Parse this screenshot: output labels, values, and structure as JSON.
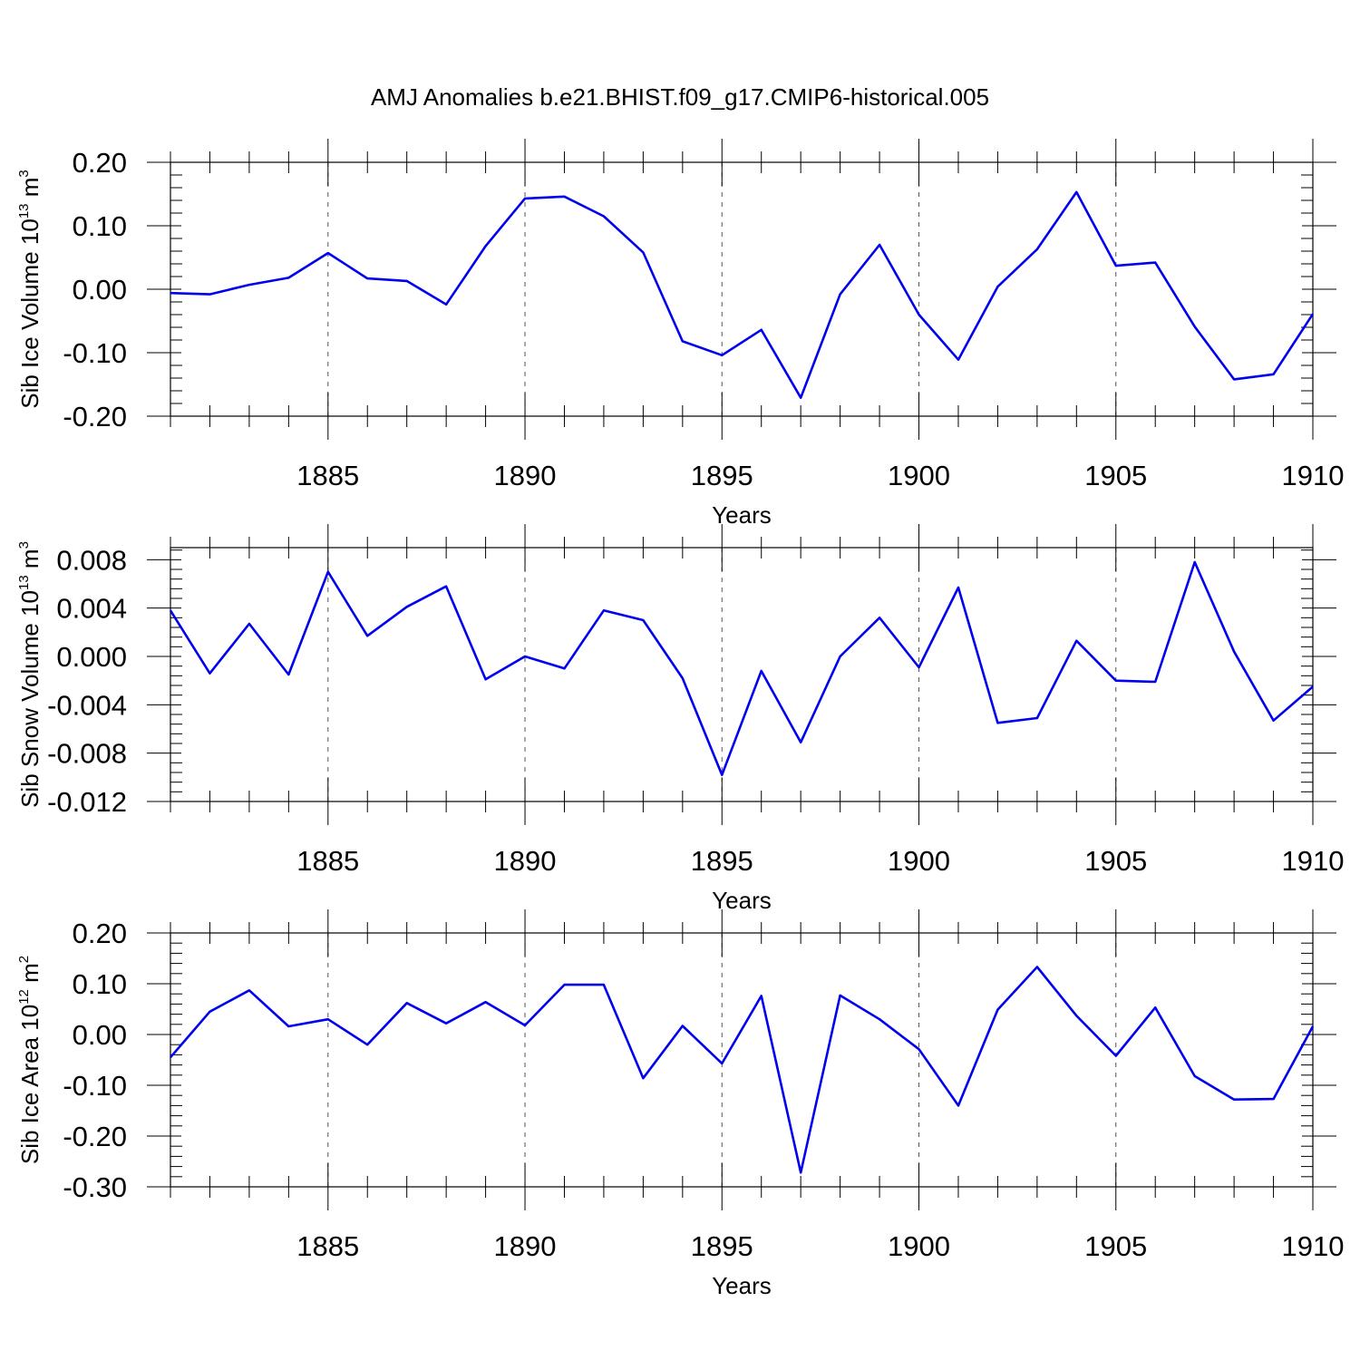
{
  "figure_title": "AMJ Anomalies b.e21.BHIST.f09_g17.CMIP6-historical.005",
  "colors": {
    "series": "#0000ee",
    "axes": "#000000",
    "grid": "#555555"
  },
  "chart_data": [
    {
      "type": "line",
      "title": "AMJ Anomalies b.e21.BHIST.f09_g17.CMIP6-historical.005",
      "xlabel": "Years",
      "ylabel": {
        "text": "Sib Ice Volume 10",
        "exponent": "13",
        "unit": " m",
        "unit_exponent": "3"
      },
      "xlim": [
        1881,
        1910
      ],
      "ylim": [
        -0.2,
        0.2
      ],
      "yticks": [
        -0.2,
        -0.1,
        0.0,
        0.1,
        0.2
      ],
      "ytick_labels": [
        "-0.20",
        "-0.10",
        "0.00",
        "0.10",
        "0.20"
      ],
      "xticks": [
        1885,
        1890,
        1895,
        1900,
        1905,
        1910
      ],
      "xtick_labels": [
        "1885",
        "1890",
        "1895",
        "1900",
        "1905",
        "1910"
      ],
      "vgrid_at": [
        1885,
        1890,
        1895,
        1900,
        1905
      ],
      "x": [
        1881,
        1882,
        1883,
        1884,
        1885,
        1886,
        1887,
        1888,
        1889,
        1890,
        1891,
        1892,
        1893,
        1894,
        1895,
        1896,
        1897,
        1898,
        1899,
        1900,
        1901,
        1902,
        1903,
        1904,
        1905,
        1906,
        1907,
        1908,
        1909,
        1910
      ],
      "series": [
        {
          "name": "Sib Ice Volume",
          "values": [
            -0.006,
            -0.008,
            0.007,
            0.018,
            0.057,
            0.017,
            0.013,
            -0.024,
            0.068,
            0.143,
            0.146,
            0.115,
            0.058,
            -0.082,
            -0.104,
            -0.064,
            -0.171,
            -0.008,
            0.07,
            -0.04,
            -0.111,
            0.004,
            0.063,
            0.153,
            0.037,
            0.042,
            -0.059,
            -0.142,
            -0.134,
            -0.039
          ]
        }
      ]
    },
    {
      "type": "line",
      "xlabel": "Years",
      "ylabel": {
        "text": "Sib Snow Volume 10",
        "exponent": "13",
        "unit": " m",
        "unit_exponent": "3"
      },
      "xlim": [
        1881,
        1910
      ],
      "ylim": [
        -0.012,
        0.009
      ],
      "yticks": [
        -0.012,
        -0.008,
        -0.004,
        0.0,
        0.004,
        0.008
      ],
      "ytick_labels": [
        "-0.012",
        "-0.008",
        "-0.004",
        "0.000",
        "0.004",
        "0.008"
      ],
      "xticks": [
        1885,
        1890,
        1895,
        1900,
        1905,
        1910
      ],
      "xtick_labels": [
        "1885",
        "1890",
        "1895",
        "1900",
        "1905",
        "1910"
      ],
      "vgrid_at": [
        1885,
        1890,
        1895,
        1900,
        1905
      ],
      "x": [
        1881,
        1882,
        1883,
        1884,
        1885,
        1886,
        1887,
        1888,
        1889,
        1890,
        1891,
        1892,
        1893,
        1894,
        1895,
        1896,
        1897,
        1898,
        1899,
        1900,
        1901,
        1902,
        1903,
        1904,
        1905,
        1906,
        1907,
        1908,
        1909,
        1910
      ],
      "series": [
        {
          "name": "Sib Snow Volume",
          "values": [
            0.0038,
            -0.0014,
            0.0027,
            -0.0015,
            0.007,
            0.0017,
            0.0041,
            0.0058,
            -0.0019,
            0.0,
            -0.001,
            0.0038,
            0.003,
            -0.0018,
            -0.0098,
            -0.0012,
            -0.0071,
            0.0,
            0.0032,
            -0.0009,
            0.0057,
            -0.0055,
            -0.0051,
            0.0013,
            -0.002,
            -0.0021,
            0.0078,
            0.0004,
            -0.0053,
            -0.0025
          ]
        }
      ]
    },
    {
      "type": "line",
      "xlabel": "Years",
      "ylabel": {
        "text": "Sib Ice Area 10",
        "exponent": "12",
        "unit": " m",
        "unit_exponent": "2"
      },
      "xlim": [
        1881,
        1910
      ],
      "ylim": [
        -0.3,
        0.2
      ],
      "yticks": [
        -0.3,
        -0.2,
        -0.1,
        0.0,
        0.1,
        0.2
      ],
      "ytick_labels": [
        "-0.30",
        "-0.20",
        "-0.10",
        "0.00",
        "0.10",
        "0.20"
      ],
      "xticks": [
        1885,
        1890,
        1895,
        1900,
        1905,
        1910
      ],
      "xtick_labels": [
        "1885",
        "1890",
        "1895",
        "1900",
        "1905",
        "1910"
      ],
      "vgrid_at": [
        1885,
        1890,
        1895,
        1900,
        1905
      ],
      "x": [
        1881,
        1882,
        1883,
        1884,
        1885,
        1886,
        1887,
        1888,
        1889,
        1890,
        1891,
        1892,
        1893,
        1894,
        1895,
        1896,
        1897,
        1898,
        1899,
        1900,
        1901,
        1902,
        1903,
        1904,
        1905,
        1906,
        1907,
        1908,
        1909,
        1910
      ],
      "series": [
        {
          "name": "Sib Ice Area",
          "values": [
            -0.045,
            0.045,
            0.087,
            0.016,
            0.03,
            -0.02,
            0.062,
            0.022,
            0.064,
            0.018,
            0.098,
            0.098,
            -0.086,
            0.017,
            -0.057,
            0.076,
            -0.272,
            0.077,
            0.03,
            -0.029,
            -0.14,
            0.049,
            0.133,
            0.037,
            -0.042,
            0.053,
            -0.082,
            -0.128,
            -0.127,
            0.016
          ]
        }
      ]
    }
  ]
}
